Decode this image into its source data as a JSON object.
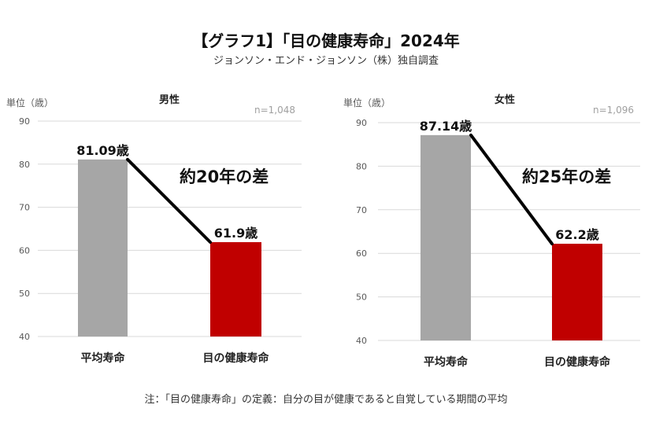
{
  "title": "【グラフ1】「目の健康寿命」2024年",
  "subtitle": "ジョンソン・エンド・ジョンソン（株）独自調査",
  "footnote": "注：「目の健康寿命」の定義：自分の目が健康であると自覚している期間の平均",
  "colors": {
    "gray_bar": "#a6a6a6",
    "red_bar": "#c00000",
    "grid": "#d9d9d9",
    "axis_text": "#595959",
    "n_text": "#a0a0a0"
  },
  "chart_data": [
    {
      "type": "bar",
      "title": "男性",
      "unit_label": "単位（歳）",
      "sample_size": "n=1,048",
      "categories": [
        "平均寿命",
        "目の健康寿命"
      ],
      "values": [
        81.09,
        61.9
      ],
      "data_labels": [
        "81.09歳",
        "61.9歳"
      ],
      "annotation": "約20年の差",
      "ylim": [
        40,
        90
      ],
      "yticks": [
        40,
        50,
        60,
        70,
        80,
        90
      ],
      "grid": true
    },
    {
      "type": "bar",
      "title": "女性",
      "unit_label": "単位（歳）",
      "sample_size": "n=1,096",
      "categories": [
        "平均寿命",
        "目の健康寿命"
      ],
      "values": [
        87.14,
        62.2
      ],
      "data_labels": [
        "87.14歳",
        "62.2歳"
      ],
      "annotation": "約25年の差",
      "ylim": [
        40,
        90
      ],
      "yticks": [
        40,
        50,
        60,
        70,
        80,
        90
      ],
      "grid": true
    }
  ]
}
